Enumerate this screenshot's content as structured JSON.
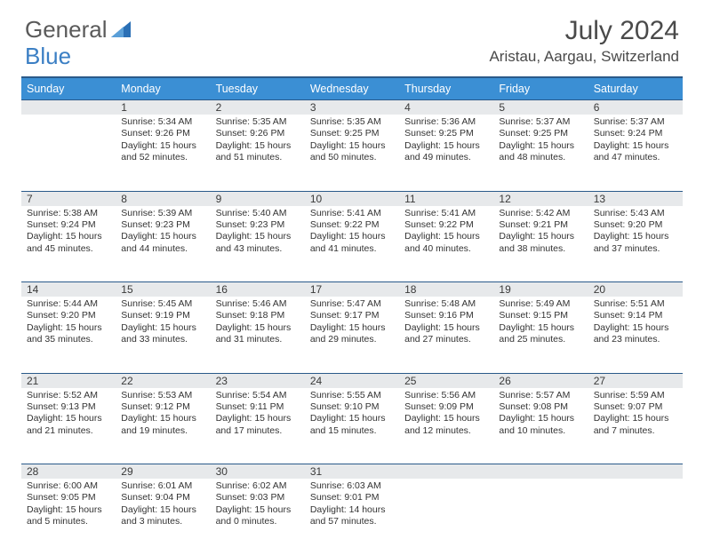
{
  "brand": {
    "text1": "General",
    "text2": "Blue",
    "logo_color": "#2a6fb5"
  },
  "title": "July 2024",
  "location": "Aristau, Aargau, Switzerland",
  "colors": {
    "header_bg": "#3b8fd4",
    "header_text": "#ffffff",
    "border": "#2a5a8a",
    "daynum_bg": "#e7e9eb",
    "text": "#333333",
    "title_text": "#4a4a4a"
  },
  "fonts": {
    "title_size": 30,
    "location_size": 17,
    "weekday_size": 12.5,
    "daynum_size": 12,
    "cell_size": 10.5
  },
  "weekdays": [
    "Sunday",
    "Monday",
    "Tuesday",
    "Wednesday",
    "Thursday",
    "Friday",
    "Saturday"
  ],
  "start_offset": 1,
  "days": [
    {
      "n": 1,
      "sunrise": "5:34 AM",
      "sunset": "9:26 PM",
      "daylight": "15 hours and 52 minutes."
    },
    {
      "n": 2,
      "sunrise": "5:35 AM",
      "sunset": "9:26 PM",
      "daylight": "15 hours and 51 minutes."
    },
    {
      "n": 3,
      "sunrise": "5:35 AM",
      "sunset": "9:25 PM",
      "daylight": "15 hours and 50 minutes."
    },
    {
      "n": 4,
      "sunrise": "5:36 AM",
      "sunset": "9:25 PM",
      "daylight": "15 hours and 49 minutes."
    },
    {
      "n": 5,
      "sunrise": "5:37 AM",
      "sunset": "9:25 PM",
      "daylight": "15 hours and 48 minutes."
    },
    {
      "n": 6,
      "sunrise": "5:37 AM",
      "sunset": "9:24 PM",
      "daylight": "15 hours and 47 minutes."
    },
    {
      "n": 7,
      "sunrise": "5:38 AM",
      "sunset": "9:24 PM",
      "daylight": "15 hours and 45 minutes."
    },
    {
      "n": 8,
      "sunrise": "5:39 AM",
      "sunset": "9:23 PM",
      "daylight": "15 hours and 44 minutes."
    },
    {
      "n": 9,
      "sunrise": "5:40 AM",
      "sunset": "9:23 PM",
      "daylight": "15 hours and 43 minutes."
    },
    {
      "n": 10,
      "sunrise": "5:41 AM",
      "sunset": "9:22 PM",
      "daylight": "15 hours and 41 minutes."
    },
    {
      "n": 11,
      "sunrise": "5:41 AM",
      "sunset": "9:22 PM",
      "daylight": "15 hours and 40 minutes."
    },
    {
      "n": 12,
      "sunrise": "5:42 AM",
      "sunset": "9:21 PM",
      "daylight": "15 hours and 38 minutes."
    },
    {
      "n": 13,
      "sunrise": "5:43 AM",
      "sunset": "9:20 PM",
      "daylight": "15 hours and 37 minutes."
    },
    {
      "n": 14,
      "sunrise": "5:44 AM",
      "sunset": "9:20 PM",
      "daylight": "15 hours and 35 minutes."
    },
    {
      "n": 15,
      "sunrise": "5:45 AM",
      "sunset": "9:19 PM",
      "daylight": "15 hours and 33 minutes."
    },
    {
      "n": 16,
      "sunrise": "5:46 AM",
      "sunset": "9:18 PM",
      "daylight": "15 hours and 31 minutes."
    },
    {
      "n": 17,
      "sunrise": "5:47 AM",
      "sunset": "9:17 PM",
      "daylight": "15 hours and 29 minutes."
    },
    {
      "n": 18,
      "sunrise": "5:48 AM",
      "sunset": "9:16 PM",
      "daylight": "15 hours and 27 minutes."
    },
    {
      "n": 19,
      "sunrise": "5:49 AM",
      "sunset": "9:15 PM",
      "daylight": "15 hours and 25 minutes."
    },
    {
      "n": 20,
      "sunrise": "5:51 AM",
      "sunset": "9:14 PM",
      "daylight": "15 hours and 23 minutes."
    },
    {
      "n": 21,
      "sunrise": "5:52 AM",
      "sunset": "9:13 PM",
      "daylight": "15 hours and 21 minutes."
    },
    {
      "n": 22,
      "sunrise": "5:53 AM",
      "sunset": "9:12 PM",
      "daylight": "15 hours and 19 minutes."
    },
    {
      "n": 23,
      "sunrise": "5:54 AM",
      "sunset": "9:11 PM",
      "daylight": "15 hours and 17 minutes."
    },
    {
      "n": 24,
      "sunrise": "5:55 AM",
      "sunset": "9:10 PM",
      "daylight": "15 hours and 15 minutes."
    },
    {
      "n": 25,
      "sunrise": "5:56 AM",
      "sunset": "9:09 PM",
      "daylight": "15 hours and 12 minutes."
    },
    {
      "n": 26,
      "sunrise": "5:57 AM",
      "sunset": "9:08 PM",
      "daylight": "15 hours and 10 minutes."
    },
    {
      "n": 27,
      "sunrise": "5:59 AM",
      "sunset": "9:07 PM",
      "daylight": "15 hours and 7 minutes."
    },
    {
      "n": 28,
      "sunrise": "6:00 AM",
      "sunset": "9:05 PM",
      "daylight": "15 hours and 5 minutes."
    },
    {
      "n": 29,
      "sunrise": "6:01 AM",
      "sunset": "9:04 PM",
      "daylight": "15 hours and 3 minutes."
    },
    {
      "n": 30,
      "sunrise": "6:02 AM",
      "sunset": "9:03 PM",
      "daylight": "15 hours and 0 minutes."
    },
    {
      "n": 31,
      "sunrise": "6:03 AM",
      "sunset": "9:01 PM",
      "daylight": "14 hours and 57 minutes."
    }
  ],
  "labels": {
    "sunrise": "Sunrise:",
    "sunset": "Sunset:",
    "daylight": "Daylight:"
  }
}
